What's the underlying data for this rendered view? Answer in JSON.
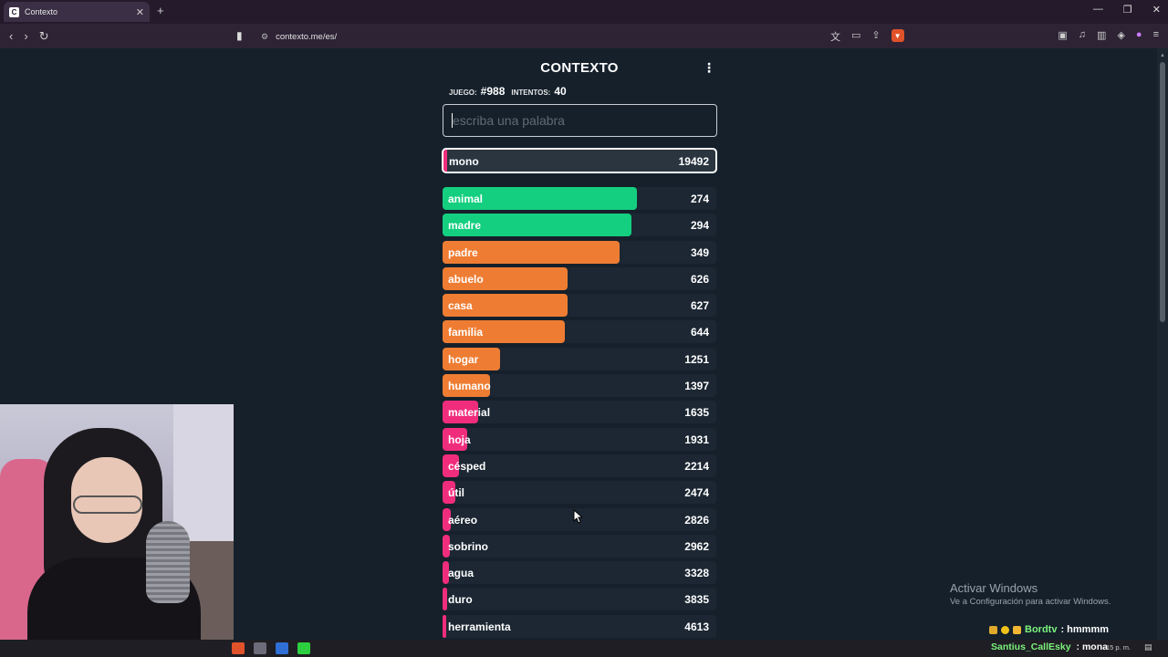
{
  "browser": {
    "tab_title": "Contexto",
    "tab_favicon": "C",
    "tab_close": "✕",
    "new_tab": "+",
    "url": "contexto.me/es/",
    "window_controls": [
      "—",
      "❐",
      "✕"
    ]
  },
  "game": {
    "title": "CONTEXTO",
    "menu_icon": "⋮",
    "game_label": "JUEGO:",
    "game_number": "#988",
    "attempts_label": "INTENTOS:",
    "attempts": "40",
    "input_placeholder": "escriba una palabra",
    "last_guess": {
      "word": "mono",
      "rank": "19492",
      "color": "#f02d7d",
      "fill": 0.01
    },
    "guesses": [
      {
        "word": "animal",
        "rank": "274",
        "color": "#14cf7f",
        "fill": 0.71
      },
      {
        "word": "madre",
        "rank": "294",
        "color": "#14cf7f",
        "fill": 0.69
      },
      {
        "word": "padre",
        "rank": "349",
        "color": "#ee7d33",
        "fill": 0.647
      },
      {
        "word": "abuelo",
        "rank": "626",
        "color": "#ee7d33",
        "fill": 0.457
      },
      {
        "word": "casa",
        "rank": "627",
        "color": "#ee7d33",
        "fill": 0.457
      },
      {
        "word": "familia",
        "rank": "644",
        "color": "#ee7d33",
        "fill": 0.447
      },
      {
        "word": "hogar",
        "rank": "1251",
        "color": "#ee7d33",
        "fill": 0.21
      },
      {
        "word": "humano",
        "rank": "1397",
        "color": "#ee7d33",
        "fill": 0.173
      },
      {
        "word": "material",
        "rank": "1635",
        "color": "#f02d7d",
        "fill": 0.13
      },
      {
        "word": "hoja",
        "rank": "1931",
        "color": "#f02d7d",
        "fill": 0.09
      },
      {
        "word": "césped",
        "rank": "2214",
        "color": "#f02d7d",
        "fill": 0.06
      },
      {
        "word": "útil",
        "rank": "2474",
        "color": "#f02d7d",
        "fill": 0.045
      },
      {
        "word": "aéreo",
        "rank": "2826",
        "color": "#f02d7d",
        "fill": 0.03
      },
      {
        "word": "sobrino",
        "rank": "2962",
        "color": "#f02d7d",
        "fill": 0.027
      },
      {
        "word": "agua",
        "rank": "3328",
        "color": "#f02d7d",
        "fill": 0.022
      },
      {
        "word": "duro",
        "rank": "3835",
        "color": "#f02d7d",
        "fill": 0.018
      },
      {
        "word": "herramienta",
        "rank": "4613",
        "color": "#f02d7d",
        "fill": 0.014
      }
    ]
  },
  "overlay": {
    "activate_title": "Activar Windows",
    "activate_sub": "Ve a Configuración para activar Windows.",
    "chat_user_1": "Bordtv",
    "chat_msg_1": ": hmmmm",
    "chat_user_2": "Santius_CallEsky",
    "chat_msg_2": ": mona",
    "clock": "15 p. m."
  }
}
